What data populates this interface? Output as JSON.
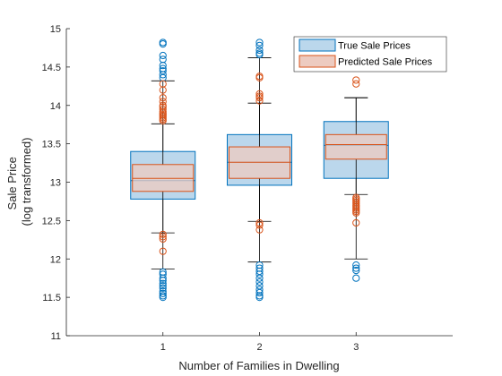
{
  "chart_data": {
    "type": "boxplot",
    "xlabel": "Number of Families in Dwelling",
    "ylabel_lines": [
      "Sale Price",
      "(log transformed)"
    ],
    "categories": [
      "1",
      "2",
      "3"
    ],
    "ylim": [
      11,
      15
    ],
    "yticks": [
      11,
      11.5,
      12,
      12.5,
      13,
      13.5,
      14,
      14.5,
      15
    ],
    "ytick_labels": [
      "11",
      "11.5",
      "12",
      "12.5",
      "13",
      "13.5",
      "14",
      "14.5",
      "15"
    ],
    "legend_position": "top-right",
    "series": [
      {
        "name": "True Sale Prices",
        "edge_color": "#0072BD",
        "fill_color": "#BBD7EC",
        "boxes": [
          {
            "q1": 12.78,
            "median": 13.02,
            "q3": 13.4,
            "whisker_low": 11.87,
            "whisker_high": 14.32,
            "outliers": [
              14.82,
              14.8,
              14.65,
              14.6,
              14.52,
              14.48,
              14.45,
              14.4,
              14.36,
              11.83,
              11.8,
              11.75,
              11.72,
              11.68,
              11.65,
              11.62,
              11.58,
              11.55,
              11.52,
              11.5
            ]
          },
          {
            "q1": 12.96,
            "median": 13.26,
            "q3": 13.62,
            "whisker_low": 11.96,
            "whisker_high": 14.62,
            "outliers": [
              14.82,
              14.78,
              14.72,
              14.68,
              14.66,
              11.92,
              11.88,
              11.84,
              11.8,
              11.75,
              11.7,
              11.65,
              11.6,
              11.56,
              11.52,
              11.5
            ]
          },
          {
            "q1": 13.05,
            "median": 13.48,
            "q3": 13.79,
            "whisker_low": 12.0,
            "whisker_high": 14.1,
            "outliers": [
              11.92,
              11.88,
              11.85,
              11.75
            ]
          }
        ]
      },
      {
        "name": "Predicted Sale Prices",
        "edge_color": "#D95319",
        "fill_color": "#EDCBC0",
        "boxes": [
          {
            "q1": 12.88,
            "median": 13.05,
            "q3": 13.23,
            "whisker_low": 12.34,
            "whisker_high": 13.76,
            "outliers": [
              14.28,
              14.2,
              14.1,
              14.05,
              14.0,
              13.98,
              13.95,
              13.92,
              13.9,
              13.88,
              13.86,
              13.84,
              13.82,
              13.8,
              12.32,
              12.29,
              12.26,
              12.1
            ]
          },
          {
            "q1": 13.05,
            "median": 13.26,
            "q3": 13.46,
            "whisker_low": 12.49,
            "whisker_high": 14.03,
            "outliers": [
              14.38,
              14.36,
              14.15,
              14.12,
              14.1,
              14.06,
              12.47,
              12.44,
              12.38
            ]
          },
          {
            "q1": 13.3,
            "median": 13.49,
            "q3": 13.62,
            "whisker_low": 12.84,
            "whisker_high": 14.1,
            "outliers": [
              14.33,
              14.28,
              12.8,
              12.78,
              12.76,
              12.74,
              12.72,
              12.7,
              12.68,
              12.66,
              12.64,
              12.62,
              12.6,
              12.47
            ]
          }
        ]
      }
    ]
  }
}
